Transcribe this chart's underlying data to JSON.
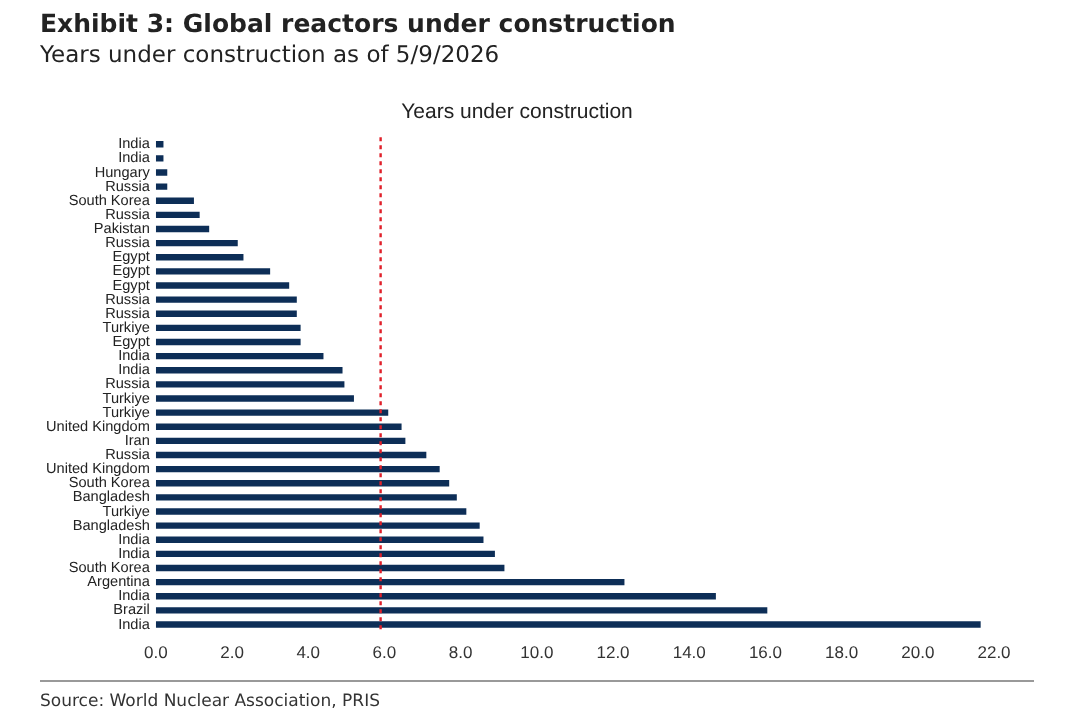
{
  "chart_data": {
    "type": "bar",
    "orientation": "horizontal",
    "title": "Exhibit 3: Global reactors under construction",
    "subtitle": "Years under construction as of 5/9/2026",
    "xlabel": "Years under construction",
    "categories": [
      "India",
      "India",
      "Hungary",
      "Russia",
      "South Korea",
      "Russia",
      "Pakistan",
      "Russia",
      "Egypt",
      "Egypt",
      "Egypt",
      "Russia",
      "Russia",
      "Turkiye",
      "Egypt",
      "India",
      "India",
      "Russia",
      "Turkiye",
      "Turkiye",
      "United Kingdom",
      "Iran",
      "Russia",
      "United Kingdom",
      "South Korea",
      "Bangladesh",
      "Turkiye",
      "Bangladesh",
      "India",
      "India",
      "South Korea",
      "Argentina",
      "India",
      "Brazil",
      "India"
    ],
    "values": [
      0.2,
      0.2,
      0.3,
      0.3,
      1.0,
      1.15,
      1.4,
      2.15,
      2.3,
      3.0,
      3.5,
      3.7,
      3.7,
      3.8,
      3.8,
      4.4,
      4.9,
      4.95,
      5.2,
      6.1,
      6.45,
      6.55,
      7.1,
      7.45,
      7.7,
      7.9,
      8.15,
      8.5,
      8.6,
      8.9,
      9.15,
      12.3,
      14.7,
      16.05,
      21.65
    ],
    "color": "#0d2e57",
    "xlim": [
      0,
      22
    ],
    "xticks": [
      {
        "value": 0,
        "label": "0.0"
      },
      {
        "value": 2,
        "label": "2.0"
      },
      {
        "value": 4,
        "label": "4.0"
      },
      {
        "value": 6,
        "label": "6.0"
      },
      {
        "value": 8,
        "label": "8.0"
      },
      {
        "value": 10,
        "label": "10.0"
      },
      {
        "value": 12,
        "label": "12.0"
      },
      {
        "value": 14,
        "label": "14.0"
      },
      {
        "value": 16,
        "label": "16.0"
      },
      {
        "value": 18,
        "label": "18.0"
      },
      {
        "value": 20,
        "label": "20.0"
      },
      {
        "value": 22,
        "label": "22.0"
      }
    ],
    "ref_lines": [
      {
        "axis": "x",
        "value": 5.9,
        "color": "#e0202a",
        "line_style": "dotted"
      }
    ],
    "grid": false,
    "legend": false,
    "annotations": [
      "Source: World Nuclear Association, PRIS"
    ]
  }
}
